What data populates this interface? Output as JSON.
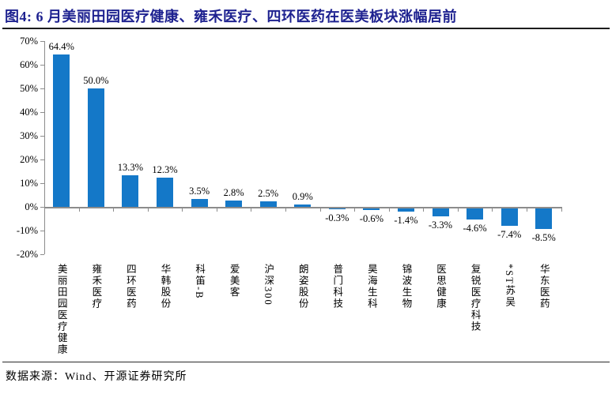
{
  "header": {
    "title": "图4: 6 月美丽田园医疗健康、雍禾医疗、四环医药在医美板块涨幅居前"
  },
  "footer": {
    "source_label": "数据来源：Wind、开源证券研究所"
  },
  "colors": {
    "title_navy": "#1E2290",
    "bar_blue": "#1478C8",
    "axis_gray": "#8C8C8C"
  },
  "chart_data": {
    "type": "bar",
    "title": "6 月美丽田园医疗健康、雍禾医疗、四环医药在医美板块涨幅居前",
    "categories": [
      "美丽田园医疗健康",
      "雍禾医疗",
      "四环医药",
      "华韩股份",
      "科笛-B",
      "爱美客",
      "沪深300",
      "朗姿股份",
      "普门科技",
      "昊海生科",
      "锦波生物",
      "医思健康",
      "复锐医疗科技",
      "*ST苏吴",
      "华东医药"
    ],
    "values": [
      64.4,
      50.0,
      13.3,
      12.3,
      3.5,
      2.8,
      2.5,
      0.9,
      -0.3,
      -0.6,
      -1.4,
      -3.3,
      -4.6,
      -7.4,
      -8.5
    ],
    "value_labels": [
      "64.4%",
      "50.0%",
      "13.3%",
      "12.3%",
      "3.5%",
      "2.8%",
      "2.5%",
      "0.9%",
      "-0.3%",
      "-0.6%",
      "-1.4%",
      "-3.3%",
      "-4.6%",
      "-7.4%",
      "-8.5%"
    ],
    "y_tick_labels": [
      "70%",
      "60%",
      "50%",
      "40%",
      "30%",
      "20%",
      "10%",
      "0%",
      "-10%",
      "-20%"
    ],
    "ylim": [
      -20,
      70
    ],
    "xlabel": "",
    "ylabel": "",
    "grid": false,
    "legend_position": "none",
    "bar_color": "#1478C8",
    "source": "数据来源：Wind、开源证券研究所"
  }
}
